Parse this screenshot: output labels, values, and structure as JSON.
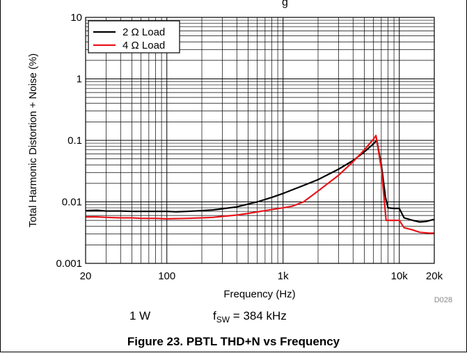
{
  "header_fragment": "g          ",
  "figure_caption": "Figure 23. PBTL THD+N vs Frequency",
  "conditions": {
    "power": "1 W",
    "fsw_symbol": "f",
    "fsw_subscript": "SW",
    "fsw_value": " = 384 kHz"
  },
  "chart_id": "D028",
  "colors": {
    "series_2ohm": "#000000",
    "series_4ohm": "#e8141a",
    "grid": "#000000"
  },
  "chart_data": {
    "type": "line",
    "title": "",
    "xlabel": "Frequency (Hz)",
    "ylabel": "Total Harmonic Distortion + Noise (%)",
    "xscale": "log",
    "yscale": "log",
    "xlim": [
      20,
      20000
    ],
    "ylim": [
      0.001,
      10
    ],
    "x_ticks": [
      {
        "value": 20,
        "label": "20"
      },
      {
        "value": 100,
        "label": "100"
      },
      {
        "value": 1000,
        "label": "1k"
      },
      {
        "value": 10000,
        "label": "10k"
      },
      {
        "value": 20000,
        "label": "20k"
      }
    ],
    "y_ticks": [
      {
        "value": 0.001,
        "label": "0.001"
      },
      {
        "value": 0.01,
        "label": "0.01"
      },
      {
        "value": 0.1,
        "label": "0.1"
      },
      {
        "value": 1,
        "label": "1"
      },
      {
        "value": 10,
        "label": "10"
      }
    ],
    "grid": true,
    "legend_position": "top-left",
    "series": [
      {
        "name": "2 Ω Load",
        "color": "#000000",
        "points": [
          [
            20,
            0.0072
          ],
          [
            25,
            0.0073
          ],
          [
            30,
            0.0071
          ],
          [
            40,
            0.0071
          ],
          [
            50,
            0.007
          ],
          [
            60,
            0.007
          ],
          [
            80,
            0.007
          ],
          [
            100,
            0.007
          ],
          [
            120,
            0.0069
          ],
          [
            150,
            0.007
          ],
          [
            200,
            0.0072
          ],
          [
            250,
            0.0074
          ],
          [
            300,
            0.0077
          ],
          [
            400,
            0.0083
          ],
          [
            500,
            0.0092
          ],
          [
            600,
            0.01
          ],
          [
            800,
            0.0118
          ],
          [
            1000,
            0.0137
          ],
          [
            1500,
            0.0185
          ],
          [
            2000,
            0.023
          ],
          [
            3000,
            0.034
          ],
          [
            4000,
            0.047
          ],
          [
            5000,
            0.065
          ],
          [
            6000,
            0.088
          ],
          [
            6400,
            0.1
          ],
          [
            7000,
            0.04
          ],
          [
            7600,
            0.012
          ],
          [
            8000,
            0.008
          ],
          [
            9000,
            0.0078
          ],
          [
            10000,
            0.0078
          ],
          [
            11000,
            0.0055
          ],
          [
            13000,
            0.005
          ],
          [
            15000,
            0.0047
          ],
          [
            17000,
            0.0048
          ],
          [
            20000,
            0.0052
          ]
        ]
      },
      {
        "name": "4 Ω Load",
        "color": "#e8141a",
        "points": [
          [
            20,
            0.0057
          ],
          [
            25,
            0.0057
          ],
          [
            30,
            0.0056
          ],
          [
            40,
            0.0055
          ],
          [
            50,
            0.0055
          ],
          [
            60,
            0.0054
          ],
          [
            80,
            0.0054
          ],
          [
            100,
            0.0053
          ],
          [
            150,
            0.0054
          ],
          [
            200,
            0.0055
          ],
          [
            250,
            0.0056
          ],
          [
            300,
            0.0058
          ],
          [
            400,
            0.0061
          ],
          [
            500,
            0.0065
          ],
          [
            700,
            0.0072
          ],
          [
            1000,
            0.008
          ],
          [
            1200,
            0.0085
          ],
          [
            1500,
            0.01
          ],
          [
            2000,
            0.015
          ],
          [
            3000,
            0.027
          ],
          [
            4000,
            0.045
          ],
          [
            5000,
            0.07
          ],
          [
            6000,
            0.105
          ],
          [
            6300,
            0.12
          ],
          [
            7000,
            0.035
          ],
          [
            7700,
            0.005
          ],
          [
            9000,
            0.005
          ],
          [
            10000,
            0.005
          ],
          [
            11000,
            0.0038
          ],
          [
            13000,
            0.0035
          ],
          [
            15000,
            0.0032
          ],
          [
            18000,
            0.0031
          ],
          [
            20000,
            0.0031
          ]
        ]
      }
    ]
  }
}
